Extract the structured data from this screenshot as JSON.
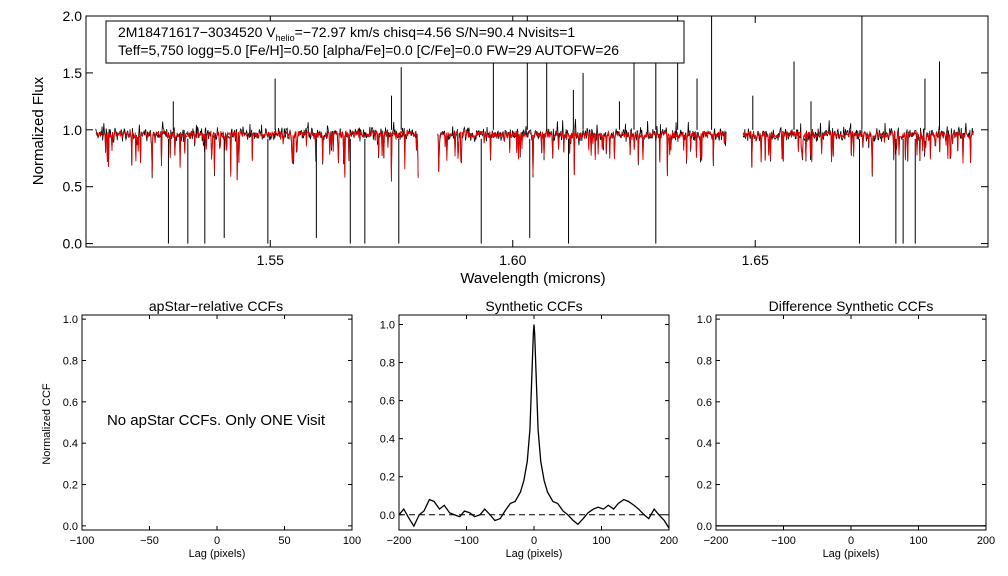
{
  "chart_data": [
    {
      "id": "spectrum",
      "type": "line",
      "xlabel": "Wavelength (microns)",
      "ylabel": "Normalized Flux",
      "xlim": [
        1.512,
        1.698
      ],
      "ylim": [
        -0.03,
        2.0
      ],
      "xticks": [
        {
          "v": 1.55,
          "label": "1.55"
        },
        {
          "v": 1.6,
          "label": "1.60"
        },
        {
          "v": 1.65,
          "label": "1.65"
        }
      ],
      "yticks": [
        {
          "v": 0.0,
          "label": "0.0"
        },
        {
          "v": 0.5,
          "label": "0.5"
        },
        {
          "v": 1.0,
          "label": "1.0"
        },
        {
          "v": 1.5,
          "label": "1.5"
        },
        {
          "v": 2.0,
          "label": "2.0"
        }
      ],
      "info_line1_pre": "2M18471617−3034520  V",
      "info_line1_sub": "helio",
      "info_line1_post": "=−72.97 km/s  chisq=4.56  S/N=90.4  Nvisits=1",
      "info_line2": "Teff=5,750 logg=5.0 [Fe/H]=0.50 [alpha/Fe]=0.0 [C/Fe]=0.0 FW=29 AUTOFW=26",
      "series": [
        {
          "name": "observed",
          "color": "#000000"
        },
        {
          "name": "synthetic",
          "color": "#e00000"
        }
      ],
      "chips": [
        [
          1.514,
          1.5805
        ],
        [
          1.5845,
          1.644
        ],
        [
          1.6475,
          1.695
        ]
      ],
      "absorption_lines": [
        {
          "x": 1.529,
          "y": 0.0
        },
        {
          "x": 1.533,
          "y": 0.0
        },
        {
          "x": 1.5365,
          "y": 0.0
        },
        {
          "x": 1.5405,
          "y": 0.05
        },
        {
          "x": 1.5495,
          "y": 0.0
        },
        {
          "x": 1.5595,
          "y": 0.05
        },
        {
          "x": 1.5665,
          "y": 0.0
        },
        {
          "x": 1.5695,
          "y": 0.0
        },
        {
          "x": 1.5765,
          "y": 0.0
        },
        {
          "x": 1.5935,
          "y": 0.0
        },
        {
          "x": 1.6035,
          "y": 0.05
        },
        {
          "x": 1.6115,
          "y": 0.0
        },
        {
          "x": 1.6295,
          "y": 0.0
        },
        {
          "x": 1.6715,
          "y": 0.0
        },
        {
          "x": 1.679,
          "y": 0.0
        },
        {
          "x": 1.6805,
          "y": 0.0
        },
        {
          "x": 1.683,
          "y": 0.0
        }
      ],
      "emission_lines": [
        {
          "x": 1.53,
          "y": 1.25
        },
        {
          "x": 1.551,
          "y": 1.45
        },
        {
          "x": 1.575,
          "y": 1.3
        },
        {
          "x": 1.577,
          "y": 1.55
        },
        {
          "x": 1.596,
          "y": 1.7
        },
        {
          "x": 1.603,
          "y": 2.0
        },
        {
          "x": 1.607,
          "y": 1.75
        },
        {
          "x": 1.6125,
          "y": 1.35
        },
        {
          "x": 1.6145,
          "y": 1.5
        },
        {
          "x": 1.622,
          "y": 1.25
        },
        {
          "x": 1.625,
          "y": 1.6
        },
        {
          "x": 1.6295,
          "y": 1.85
        },
        {
          "x": 1.634,
          "y": 2.0
        },
        {
          "x": 1.638,
          "y": 1.45
        },
        {
          "x": 1.641,
          "y": 2.0
        },
        {
          "x": 1.6495,
          "y": 1.3
        },
        {
          "x": 1.658,
          "y": 1.6
        },
        {
          "x": 1.6615,
          "y": 1.25
        },
        {
          "x": 1.672,
          "y": 2.0
        },
        {
          "x": 1.685,
          "y": 1.45
        },
        {
          "x": 1.688,
          "y": 1.6
        }
      ]
    },
    {
      "id": "apstar_ccf",
      "type": "line",
      "title": "apStar−relative CCFs",
      "xlabel": "Lag (pixels)",
      "ylabel": "Normalized CCF",
      "xlim": [
        -100,
        100
      ],
      "ylim": [
        -0.02,
        1.02
      ],
      "xticks": [
        {
          "v": -100,
          "label": "−100"
        },
        {
          "v": -50,
          "label": "−50"
        },
        {
          "v": 0,
          "label": "0"
        },
        {
          "v": 50,
          "label": "50"
        },
        {
          "v": 100,
          "label": "100"
        }
      ],
      "yticks": [
        {
          "v": 0.0,
          "label": "0.0"
        },
        {
          "v": 0.2,
          "label": "0.2"
        },
        {
          "v": 0.4,
          "label": "0.4"
        },
        {
          "v": 0.6,
          "label": "0.6"
        },
        {
          "v": 0.8,
          "label": "0.8"
        },
        {
          "v": 1.0,
          "label": "1.0"
        }
      ],
      "annotation": "No apStar CCFs.  Only ONE Visit"
    },
    {
      "id": "synthetic_ccf",
      "type": "line",
      "title": "Synthetic CCFs",
      "xlabel": "Lag (pixels)",
      "xlim": [
        -200,
        200
      ],
      "ylim": [
        -0.08,
        1.05
      ],
      "xticks": [
        {
          "v": -200,
          "label": "−200"
        },
        {
          "v": -100,
          "label": "−100"
        },
        {
          "v": 0,
          "label": "0"
        },
        {
          "v": 100,
          "label": "100"
        },
        {
          "v": 200,
          "label": "200"
        }
      ],
      "yticks": [
        {
          "v": 0.0,
          "label": "0.0"
        },
        {
          "v": 0.2,
          "label": "0.2"
        },
        {
          "v": 0.4,
          "label": "0.4"
        },
        {
          "v": 0.6,
          "label": "0.6"
        },
        {
          "v": 0.8,
          "label": "0.8"
        },
        {
          "v": 1.0,
          "label": "1.0"
        }
      ],
      "zero_line": 0.0,
      "series": [
        {
          "name": "ccf",
          "x": [
            -200,
            -193,
            -185,
            -178,
            -170,
            -163,
            -155,
            -148,
            -140,
            -133,
            -125,
            -118,
            -110,
            -103,
            -95,
            -88,
            -80,
            -73,
            -65,
            -58,
            -50,
            -43,
            -35,
            -28,
            -20,
            -15,
            -10,
            -6,
            -3,
            -1,
            0,
            1,
            3,
            6,
            10,
            15,
            20,
            28,
            35,
            43,
            50,
            58,
            65,
            73,
            80,
            88,
            95,
            103,
            110,
            118,
            125,
            133,
            140,
            148,
            155,
            163,
            170,
            178,
            185,
            193,
            200
          ],
          "y": [
            0.0,
            0.03,
            -0.02,
            -0.06,
            0.0,
            0.02,
            0.08,
            0.07,
            0.03,
            0.05,
            0.01,
            0.0,
            -0.01,
            0.02,
            0.01,
            -0.01,
            0.0,
            0.03,
            0.0,
            -0.03,
            -0.02,
            0.02,
            0.06,
            0.07,
            0.12,
            0.18,
            0.28,
            0.45,
            0.75,
            0.95,
            1.0,
            0.95,
            0.75,
            0.45,
            0.28,
            0.18,
            0.12,
            0.07,
            0.06,
            0.02,
            0.0,
            -0.03,
            -0.05,
            -0.02,
            0.01,
            0.03,
            0.04,
            0.03,
            0.05,
            0.03,
            0.06,
            0.08,
            0.07,
            0.05,
            0.03,
            0.0,
            -0.02,
            0.03,
            0.0,
            -0.03,
            -0.07
          ]
        }
      ]
    },
    {
      "id": "difference_ccf",
      "type": "line",
      "title": "Difference Synthetic CCFs",
      "xlabel": "Lag (pixels)",
      "xlim": [
        -200,
        200
      ],
      "ylim": [
        -0.02,
        1.02
      ],
      "xticks": [
        {
          "v": -200,
          "label": "−200"
        },
        {
          "v": -100,
          "label": "−100"
        },
        {
          "v": 0,
          "label": "0"
        },
        {
          "v": 100,
          "label": "100"
        },
        {
          "v": 200,
          "label": "200"
        }
      ],
      "yticks": [
        {
          "v": 0.0,
          "label": "0.0"
        },
        {
          "v": 0.2,
          "label": "0.2"
        },
        {
          "v": 0.4,
          "label": "0.4"
        },
        {
          "v": 0.6,
          "label": "0.6"
        },
        {
          "v": 0.8,
          "label": "0.8"
        },
        {
          "v": 1.0,
          "label": "1.0"
        }
      ],
      "series": [
        {
          "name": "difference",
          "x": [
            -200,
            200
          ],
          "y": [
            0.0,
            0.0
          ]
        }
      ]
    }
  ]
}
